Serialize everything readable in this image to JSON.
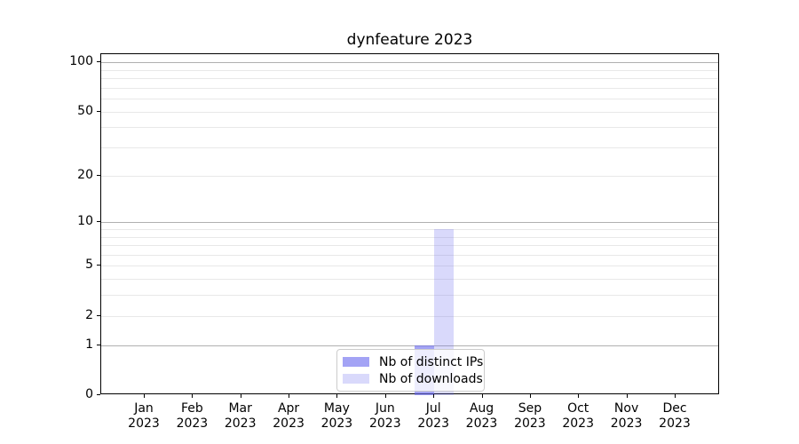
{
  "page": {
    "background": "#ffffff"
  },
  "chart_data": {
    "type": "bar",
    "title": "dynfeature 2023",
    "categories": [
      "Jan 2023",
      "Feb 2023",
      "Mar 2023",
      "Apr 2023",
      "May 2023",
      "Jun 2023",
      "Jul 2023",
      "Aug 2023",
      "Sep 2023",
      "Oct 2023",
      "Nov 2023",
      "Dec 2023"
    ],
    "x_tick_months": [
      "Jan",
      "Feb",
      "Mar",
      "Apr",
      "May",
      "Jun",
      "Jul",
      "Aug",
      "Sep",
      "Oct",
      "Nov",
      "Dec"
    ],
    "x_tick_years": [
      "2023",
      "2023",
      "2023",
      "2023",
      "2023",
      "2023",
      "2023",
      "2023",
      "2023",
      "2023",
      "2023",
      "2023"
    ],
    "series": [
      {
        "name": "Nb of distinct IPs",
        "color": "rgba(102,102,238,0.60)",
        "values": [
          0,
          0,
          0,
          0,
          0,
          0,
          1,
          0,
          0,
          0,
          0,
          0
        ]
      },
      {
        "name": "Nb of downloads",
        "color": "rgba(102,102,238,0.25)",
        "values": [
          0,
          0,
          0,
          0,
          0,
          0,
          9,
          0,
          0,
          0,
          0,
          0
        ]
      }
    ],
    "xlabel": "",
    "ylabel": "",
    "yscale": "log1p",
    "ylim": [
      0,
      112
    ],
    "yticks": [
      0,
      1,
      2,
      5,
      10,
      20,
      50,
      100
    ],
    "major_gridlines": [
      1,
      10,
      100
    ],
    "minor_gridlines": [
      2,
      3,
      4,
      5,
      6,
      7,
      8,
      9,
      20,
      30,
      40,
      50,
      60,
      70,
      80,
      90
    ],
    "grid": true,
    "legend_position": "lower center",
    "colors": {
      "major_grid": "#b0b0b0",
      "minor_grid": "#e8e8e8",
      "spine": "#000000",
      "title_text": "#000000",
      "tick_text": "#000000"
    }
  }
}
